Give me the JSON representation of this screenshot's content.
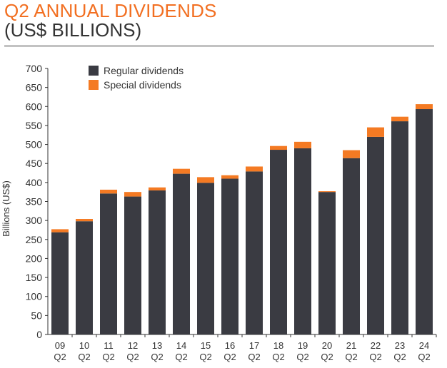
{
  "header": {
    "title": "Q2 ANNUAL DIVIDENDS",
    "subtitle": "(US$ BILLIONS)"
  },
  "colors": {
    "title": "#f26f21",
    "regular": "#3a3b42",
    "special": "#f47a23",
    "axis": "#333333"
  },
  "chart_data": {
    "type": "bar",
    "stacked": true,
    "title": "Q2 ANNUAL DIVIDENDS",
    "subtitle": "(US$ BILLIONS)",
    "xlabel": "",
    "ylabel": "Billions (US$)",
    "ylim": [
      0,
      700
    ],
    "yticks": [
      0,
      50,
      100,
      150,
      200,
      250,
      300,
      350,
      400,
      450,
      500,
      550,
      600,
      650,
      700
    ],
    "grid": false,
    "legend": "top-left",
    "categories": [
      [
        "09",
        "Q2"
      ],
      [
        "10",
        "Q2"
      ],
      [
        "11",
        "Q2"
      ],
      [
        "12",
        "Q2"
      ],
      [
        "13",
        "Q2"
      ],
      [
        "14",
        "Q2"
      ],
      [
        "15",
        "Q2"
      ],
      [
        "16",
        "Q2"
      ],
      [
        "17",
        "Q2"
      ],
      [
        "18",
        "Q2"
      ],
      [
        "19",
        "Q2"
      ],
      [
        "20",
        "Q2"
      ],
      [
        "21",
        "Q2"
      ],
      [
        "22",
        "Q2"
      ],
      [
        "23",
        "Q2"
      ],
      [
        "24",
        "Q2"
      ]
    ],
    "series": [
      {
        "name": "Regular dividends",
        "color": "#3a3b42",
        "values": [
          269,
          298,
          371,
          363,
          379,
          423,
          399,
          410,
          429,
          486,
          490,
          375,
          464,
          520,
          561,
          593
        ]
      },
      {
        "name": "Special dividends",
        "color": "#f47a23",
        "values": [
          8,
          6,
          10,
          12,
          8,
          13,
          15,
          9,
          13,
          10,
          17,
          2,
          21,
          25,
          12,
          13
        ]
      }
    ]
  }
}
